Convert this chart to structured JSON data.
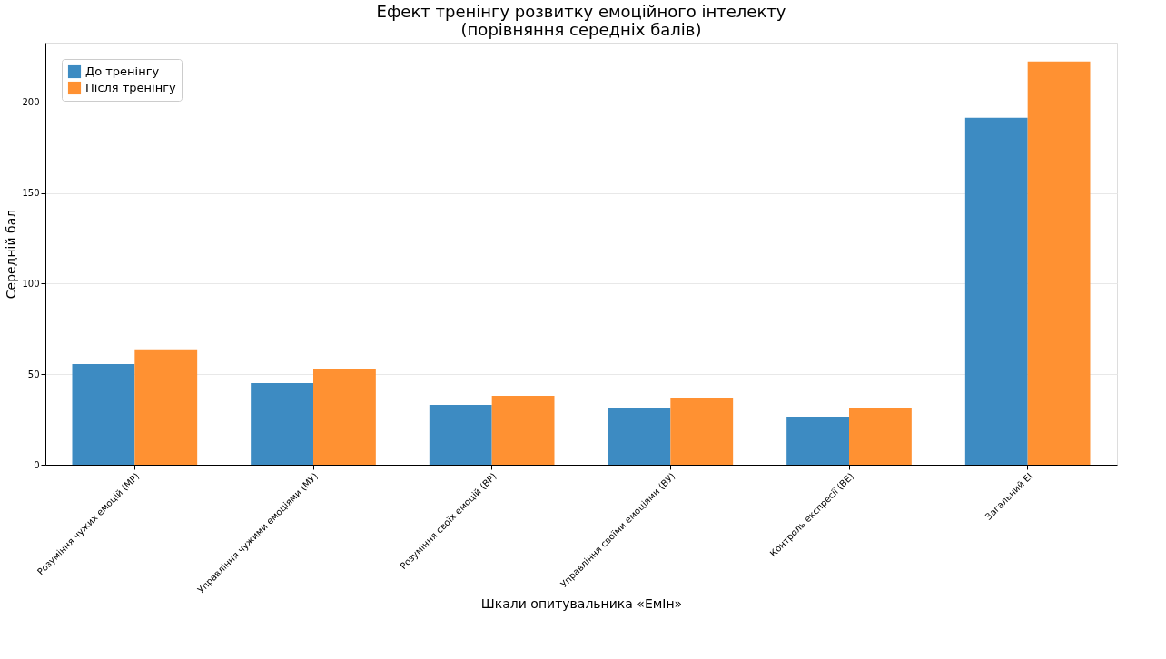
{
  "chart_data": {
    "type": "bar",
    "title": "Ефект тренінгу розвитку емоційного інтелекту\n(порівняння середніх балів)",
    "xlabel": "Шкали опитувальника «ЕмІн»",
    "ylabel": "Середній бал",
    "categories": [
      "Розуміння чужих емоцій (МР)",
      "Управління чужими емоціями (МУ)",
      "Розуміння своїх емоцій (ВР)",
      "Управління своїми емоціями (ВУ)",
      "Контроль експресії (ВЕ)",
      "Загальний ЕІ"
    ],
    "series": [
      {
        "name": "До тренінгу",
        "color": "#3d8bc2",
        "values": [
          55.6,
          45.1,
          33.1,
          31.6,
          26.6,
          191.5
        ]
      },
      {
        "name": "Після тренінгу",
        "color": "#ff9132",
        "values": [
          63.2,
          53.1,
          38.1,
          37.1,
          31.1,
          222.6
        ]
      }
    ],
    "ylim": [
      0,
      233
    ],
    "yticks": [
      0,
      50,
      100,
      150,
      200
    ],
    "grid": "y",
    "legend": "top left"
  }
}
